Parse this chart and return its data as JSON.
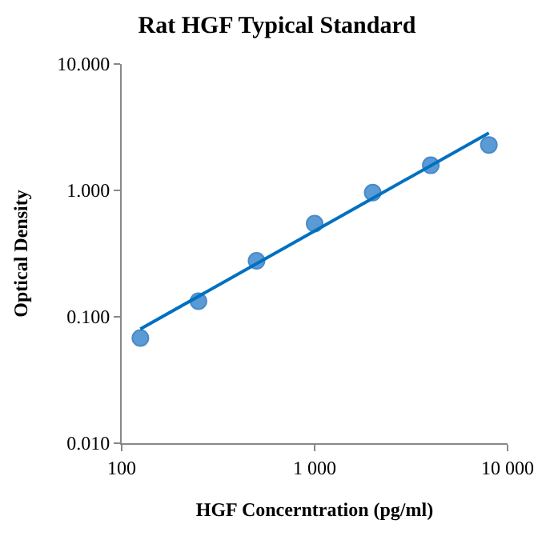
{
  "chart_data": {
    "type": "scatter",
    "title": "Rat HGF Typical Standard",
    "xlabel": "HGF Concerntration (pg/ml)",
    "ylabel": "Optical Density",
    "log": "xy",
    "grid": false,
    "legend": false,
    "marker": "circle",
    "xlim": [
      100,
      10000
    ],
    "ylim": [
      0.01,
      10
    ],
    "xticks": [
      100,
      {
        "value": 1000,
        "label": "1 000"
      },
      {
        "value": 10000,
        "label": "10 000"
      }
    ],
    "yticks": [
      {
        "value": 0.01,
        "label": "0.010"
      },
      {
        "value": 0.1,
        "label": "0.100"
      },
      {
        "value": 1,
        "label": "1.000"
      },
      {
        "value": 10,
        "label": "10.000"
      }
    ],
    "x": [
      125,
      250,
      500,
      1000,
      2000,
      4000,
      8000
    ],
    "series": [
      {
        "color": "#5b9bd5",
        "values": [
          0.068,
          0.133,
          0.277,
          0.546,
          0.96,
          1.58,
          2.29
        ]
      },
      {
        "type": "line",
        "color": "#0070c0",
        "x": [
          125,
          8000
        ],
        "values": [
          0.08,
          2.85
        ],
        "marker": "none",
        "line_style": "solid"
      }
    ]
  }
}
